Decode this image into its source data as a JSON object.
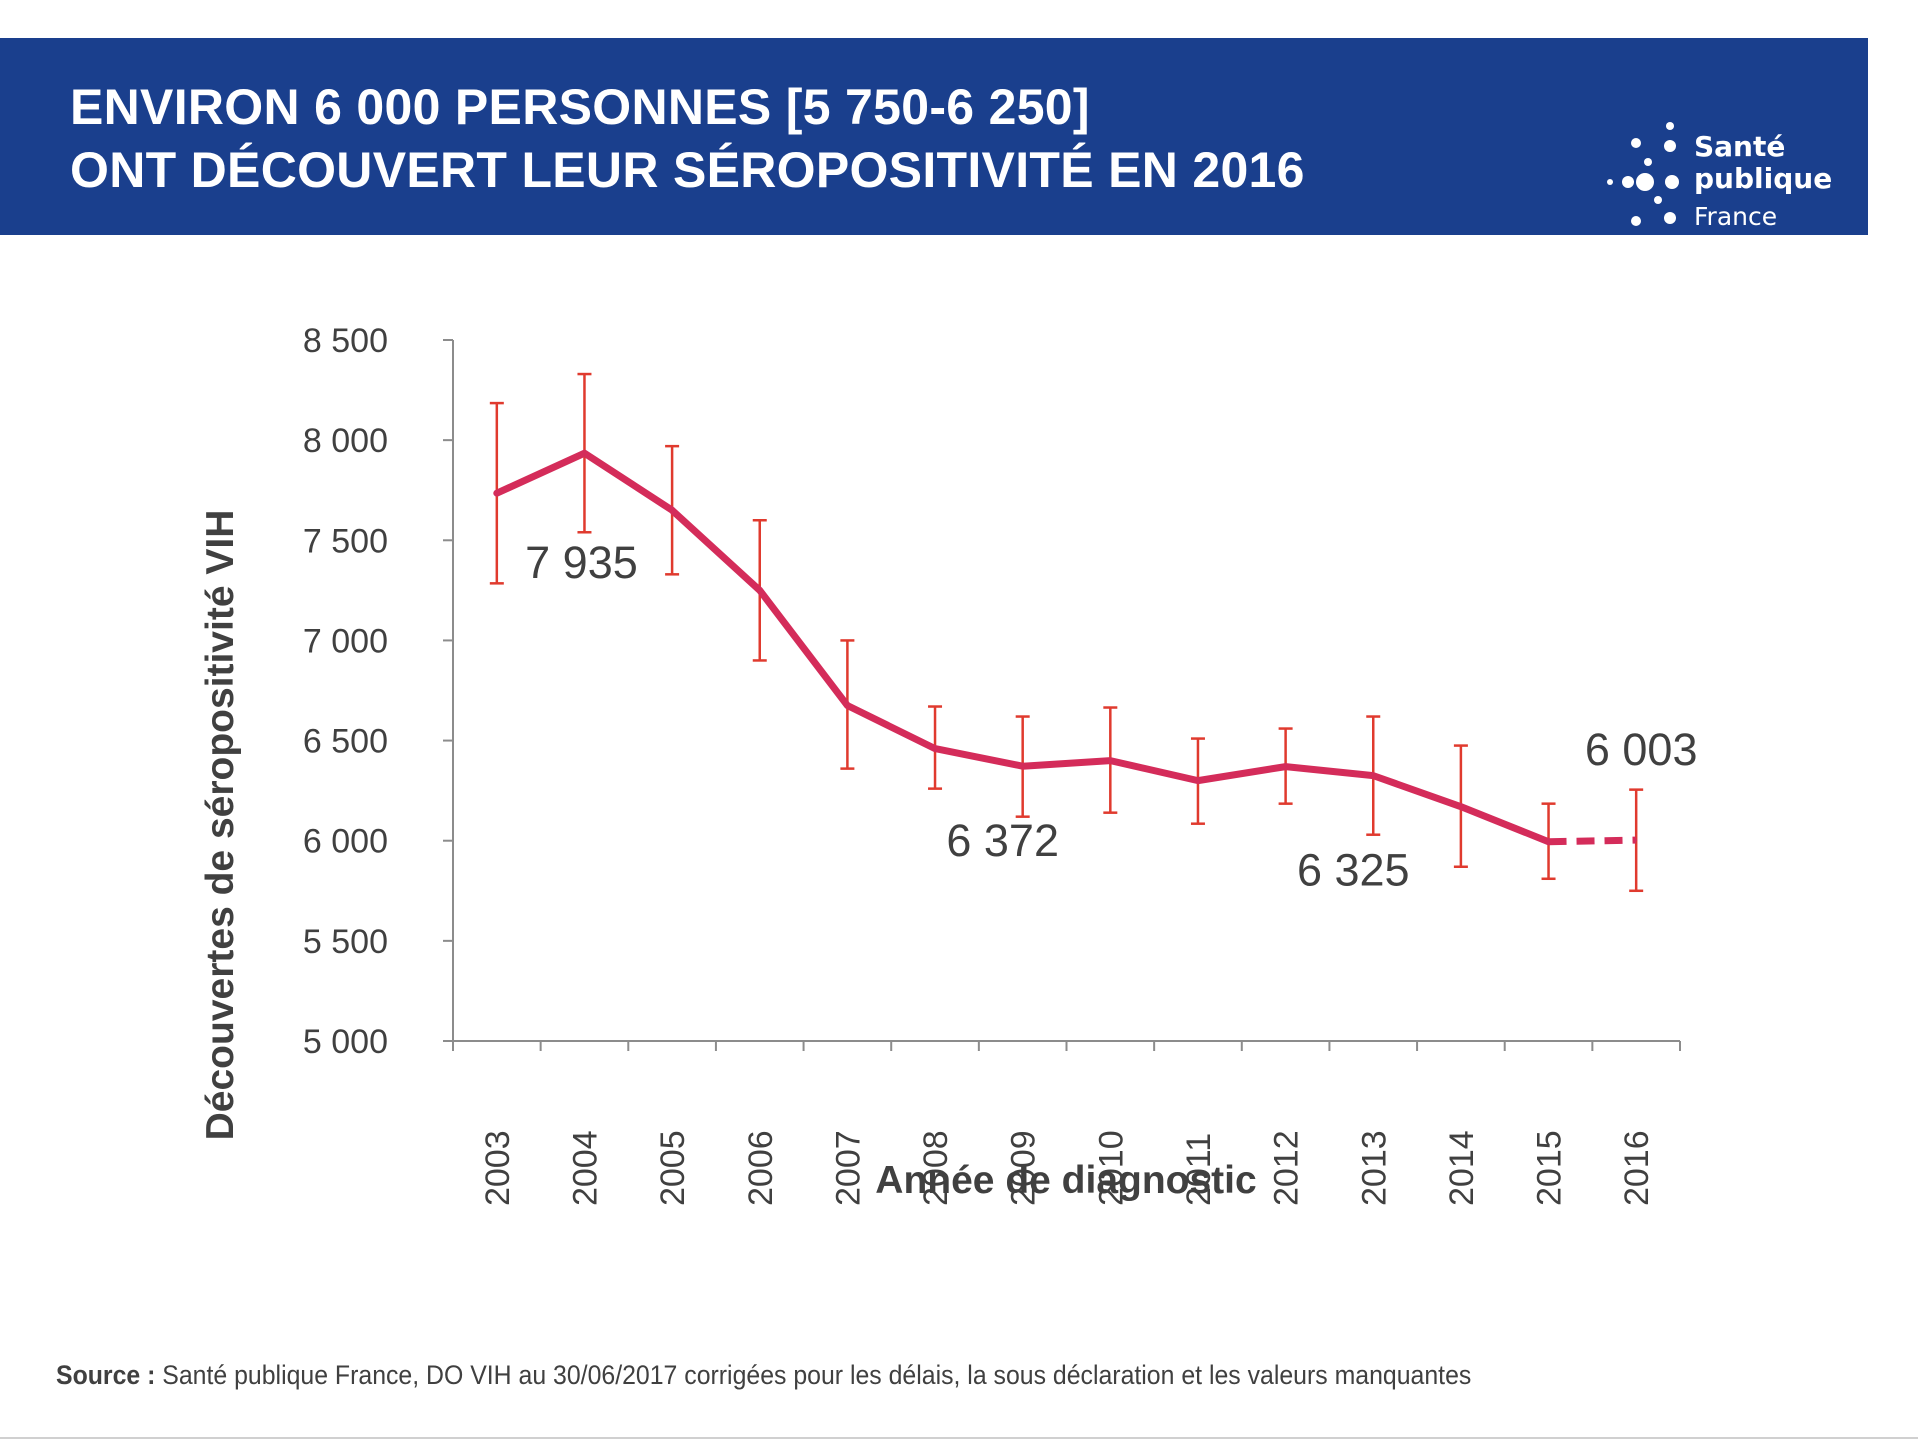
{
  "header": {
    "title_line1": "ENVIRON 6 000 PERSONNES [5 750-6 250]",
    "title_line2": "ONT DÉCOUVERT LEUR SÉROPOSITIVITÉ EN 2016",
    "background_color": "#1a3f8d"
  },
  "logo": {
    "line1": "Santé",
    "line2": "publique",
    "line3": "France"
  },
  "chart_data": {
    "type": "line",
    "title": "",
    "xlabel": "Année de diagnostic",
    "ylabel": "Découvertes de séropositivité VIH",
    "categories": [
      "2003",
      "2004",
      "2005",
      "2006",
      "2007",
      "2008",
      "2009",
      "2010",
      "2011",
      "2012",
      "2013",
      "2014",
      "2015",
      "2016"
    ],
    "series": [
      {
        "name": "Découvertes de séropositivité VIH",
        "color": "#d42c5a",
        "values": [
          7735,
          7935,
          7650,
          7250,
          6675,
          6460,
          6372,
          6400,
          6300,
          6370,
          6325,
          6170,
          5995,
          6003
        ],
        "error_low": [
          7285,
          7540,
          7330,
          6900,
          6360,
          6260,
          6120,
          6140,
          6085,
          6185,
          6030,
          5870,
          5810,
          5750
        ],
        "error_high": [
          8185,
          8330,
          7970,
          7600,
          7000,
          6670,
          6620,
          6665,
          6510,
          6560,
          6620,
          6475,
          6185,
          6255
        ],
        "dashed_from_index": 12
      }
    ],
    "error_bar_color": "#e03a2e",
    "ylim": [
      5000,
      8500
    ],
    "yticks": [
      5000,
      5500,
      6000,
      6500,
      7000,
      7500,
      8000,
      8500
    ],
    "ytick_labels": [
      "5 000",
      "5 500",
      "6 000",
      "6 500",
      "7 000",
      "7 500",
      "8 000",
      "8 500"
    ],
    "annotations": [
      {
        "text": "7 935",
        "category": "2004"
      },
      {
        "text": "6 372",
        "category": "2009"
      },
      {
        "text": "6 325",
        "category": "2013"
      },
      {
        "text": "6 003",
        "category": "2016"
      }
    ],
    "grid": false,
    "legend": "none"
  },
  "source": {
    "label": "Source :",
    "text": " Santé publique France, DO VIH au 30/06/2017 corrigées pour les délais, la sous déclaration et les valeurs manquantes"
  }
}
